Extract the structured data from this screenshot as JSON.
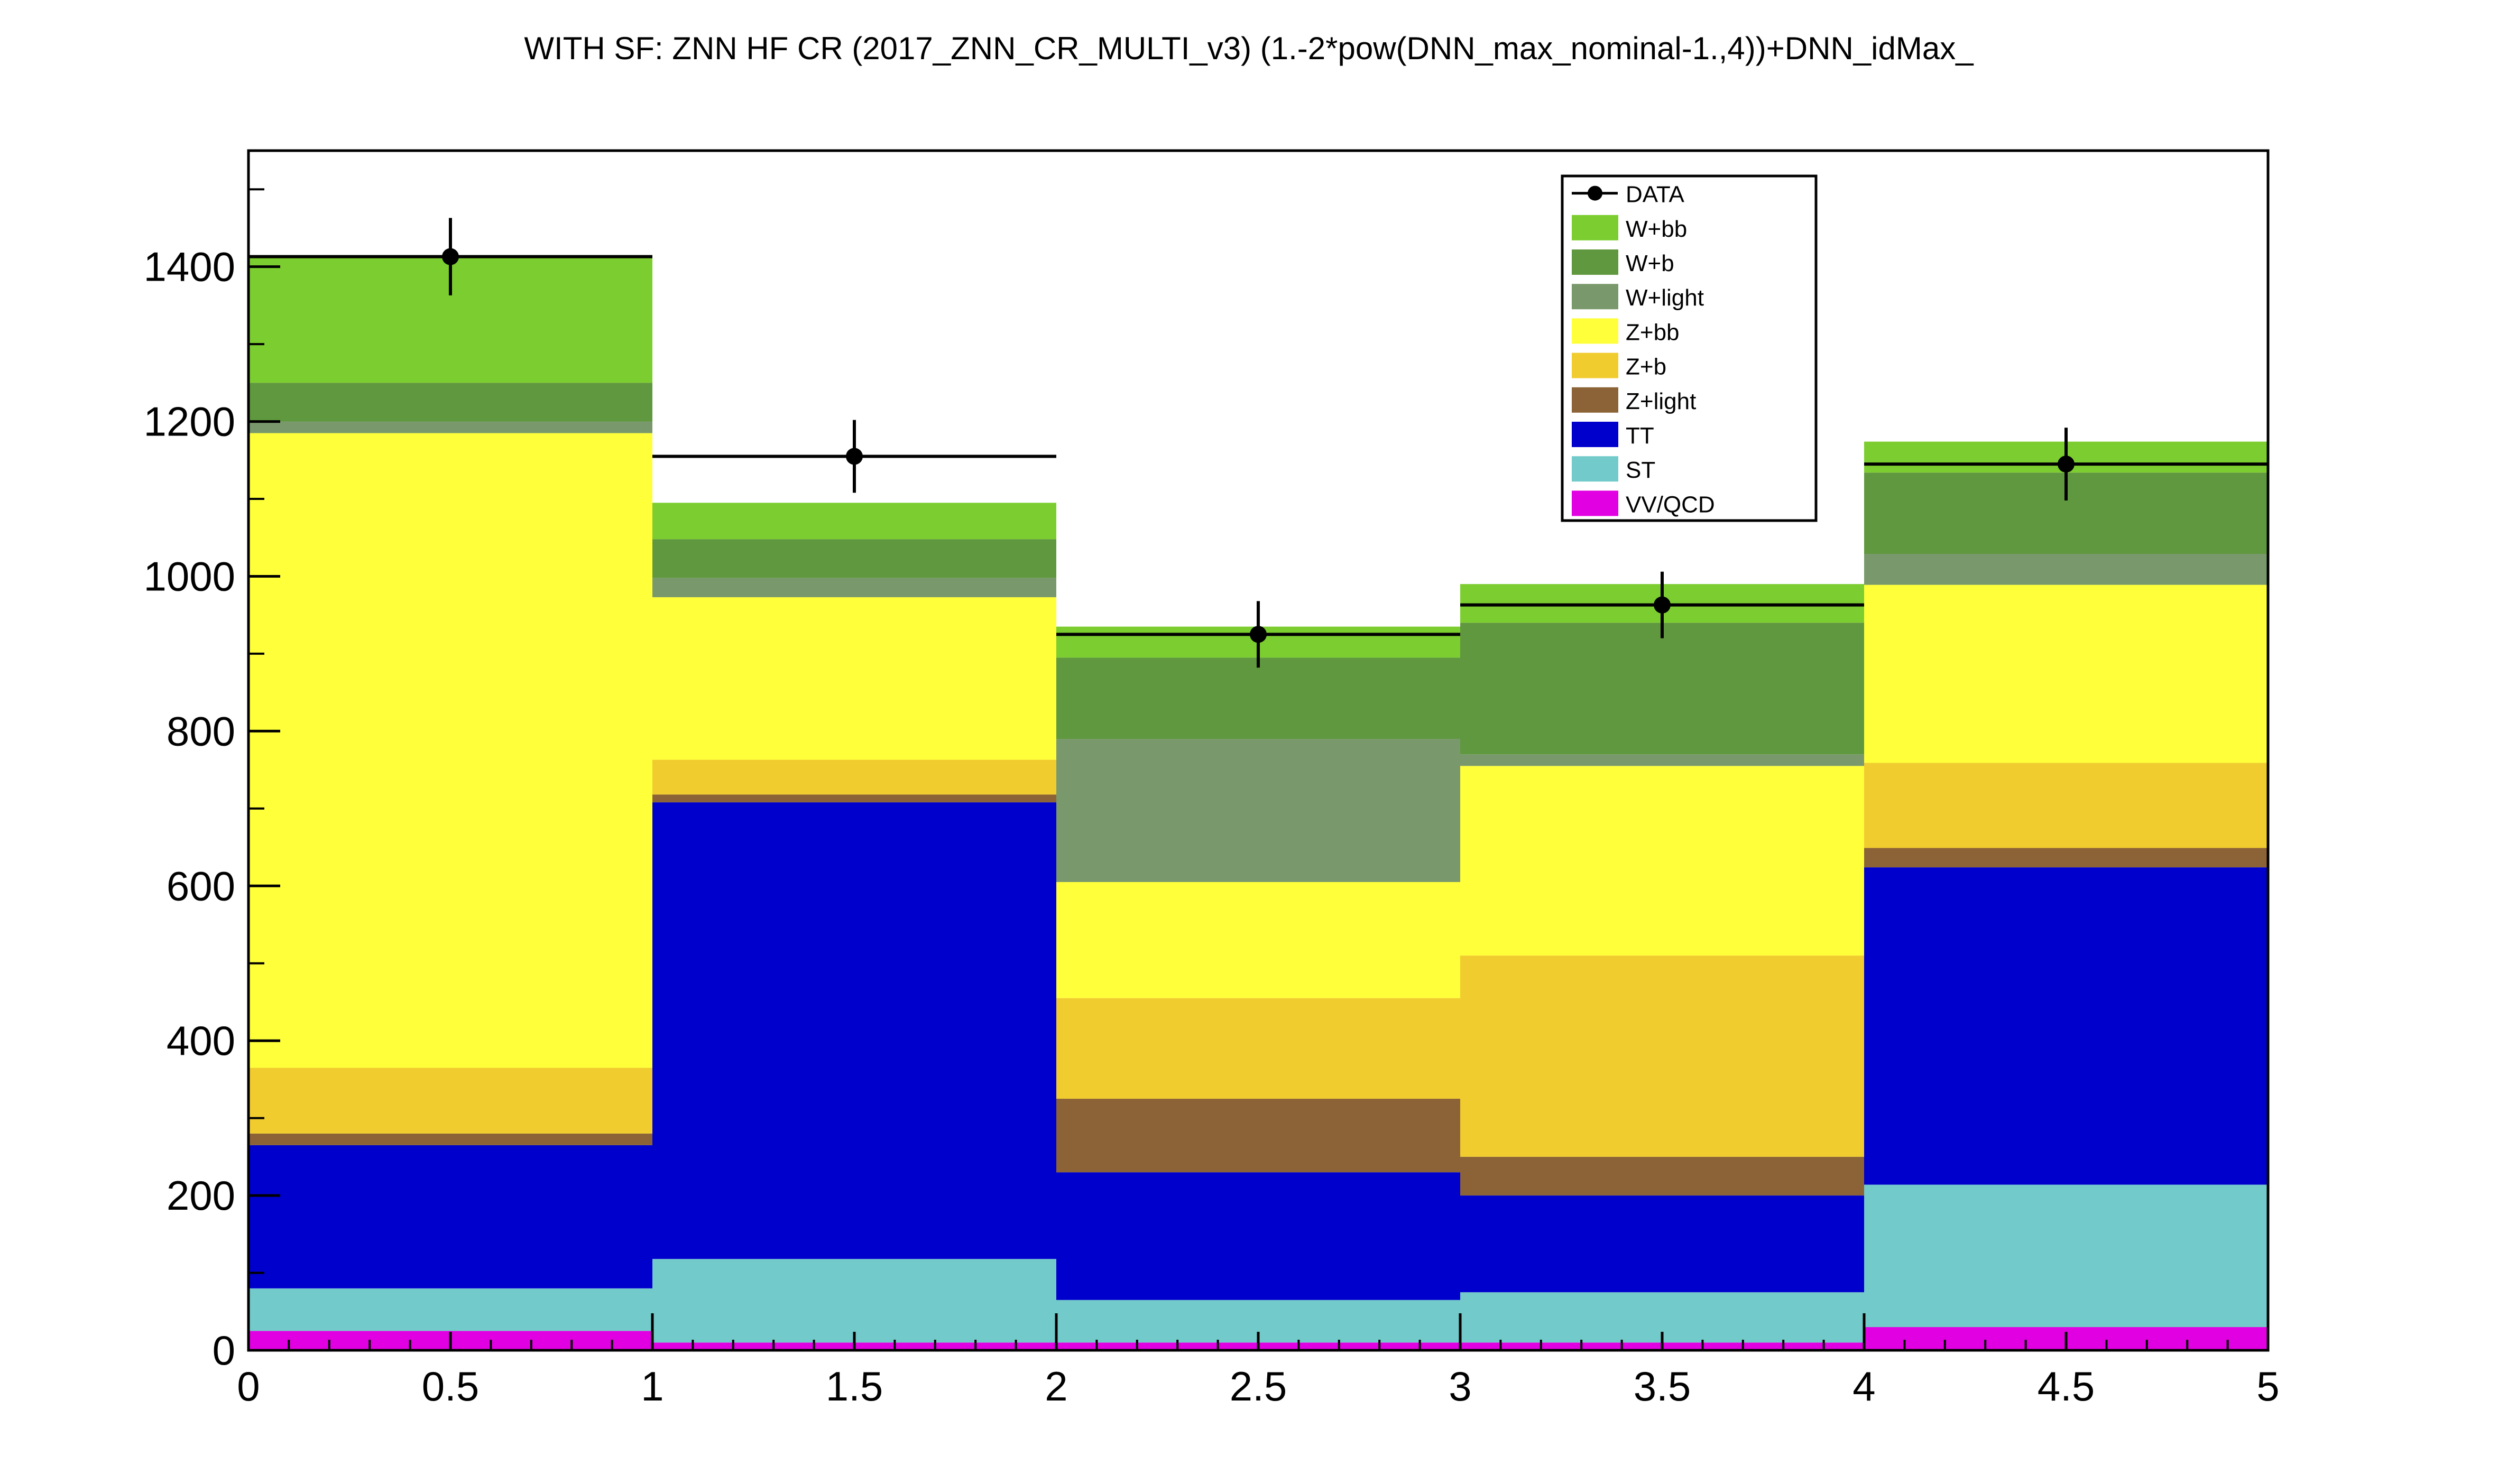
{
  "chart_data": {
    "type": "bar",
    "stacked": true,
    "title": "WITH SF: ZNN HF CR (2017_ZNN_CR_MULTI_v3)  (1.-2*pow(DNN_max_nominal-1.,4))+DNN_idMax_",
    "xlabel": "",
    "ylabel": "",
    "xlim": [
      0,
      5
    ],
    "ylim": [
      0,
      1550
    ],
    "bin_edges": [
      0,
      1,
      2,
      3,
      4,
      5
    ],
    "x_ticks": [
      "0",
      "0.5",
      "1",
      "1.5",
      "2",
      "2.5",
      "3",
      "3.5",
      "4",
      "4.5",
      "5"
    ],
    "x_tick_values": [
      0,
      0.5,
      1,
      1.5,
      2,
      2.5,
      3,
      3.5,
      4,
      4.5,
      5
    ],
    "y_ticks": [
      "0",
      "200",
      "400",
      "600",
      "800",
      "1000",
      "1200",
      "1400"
    ],
    "y_tick_values": [
      0,
      200,
      400,
      600,
      800,
      1000,
      1200,
      1400
    ],
    "legend_position": "top-right",
    "grid": false,
    "series": [
      {
        "name": "VV/QCD",
        "color": "#e100e1",
        "values": [
          25,
          10,
          10,
          10,
          30
        ]
      },
      {
        "name": "ST",
        "color": "#73caca",
        "values": [
          55,
          108,
          55,
          65,
          184
        ]
      },
      {
        "name": "TT",
        "color": "#0000cc",
        "values": [
          185,
          590,
          165,
          125,
          410
        ]
      },
      {
        "name": "Z+light",
        "color": "#8b6337",
        "values": [
          15,
          10,
          95,
          50,
          25
        ]
      },
      {
        "name": "Z+b",
        "color": "#f1cc2f",
        "values": [
          85,
          45,
          130,
          260,
          110
        ]
      },
      {
        "name": "Z+bb",
        "color": "#ffff3a",
        "values": [
          820,
          210,
          150,
          245,
          230
        ]
      },
      {
        "name": "W+light",
        "color": "#79996c",
        "values": [
          15,
          25,
          185,
          15,
          40
        ]
      },
      {
        "name": "W+b",
        "color": "#5f983e",
        "values": [
          50,
          50,
          105,
          170,
          105
        ]
      },
      {
        "name": "W+bb",
        "color": "#7ccd2f",
        "values": [
          165,
          47,
          40,
          50,
          40
        ]
      }
    ],
    "data_series": {
      "name": "DATA",
      "x": [
        0.5,
        1.5,
        2.5,
        3.5,
        4.5
      ],
      "y": [
        1413,
        1155,
        925,
        963,
        1145
      ],
      "yerr": [
        50,
        47,
        43,
        43,
        47
      ],
      "xerr": [
        0.5,
        0.5,
        0.5,
        0.5,
        0.5
      ]
    }
  }
}
